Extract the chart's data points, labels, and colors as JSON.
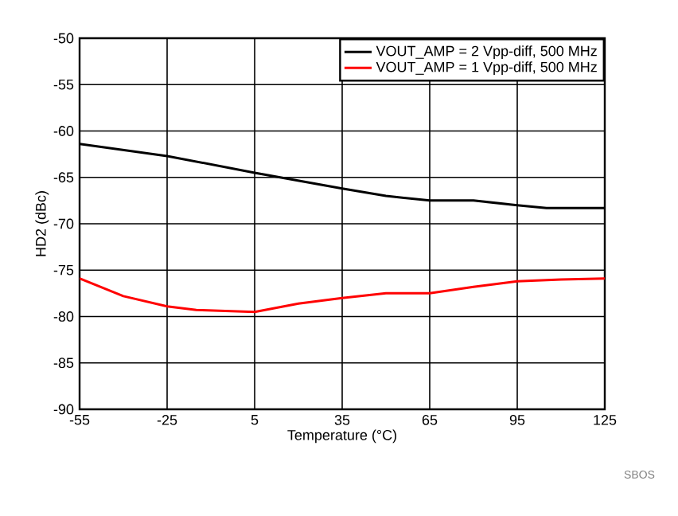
{
  "chart_data": {
    "type": "line",
    "xlabel": "Temperature (°C)",
    "ylabel": "HD2 (dBc)",
    "xlim": [
      -55,
      125
    ],
    "xticks": [
      -55,
      -25,
      5,
      35,
      65,
      95,
      125
    ],
    "ylim": [
      -90,
      -50
    ],
    "yticks": [
      -90,
      -85,
      -80,
      -75,
      -70,
      -65,
      -60,
      -55,
      -50
    ],
    "grid": true,
    "legend": "top right",
    "line_style": "solid",
    "marker": "none",
    "series": [
      {
        "name": "VOUT_AMP = 2 Vpp-diff, 500 MHz",
        "color": "#000000",
        "x": [
          -55,
          -25,
          5,
          35,
          50,
          65,
          80,
          95,
          105,
          125
        ],
        "values": [
          -61.4,
          -62.7,
          -64.5,
          -66.2,
          -67.0,
          -67.5,
          -67.5,
          -68.0,
          -68.3,
          -68.3
        ]
      },
      {
        "name": "VOUT_AMP = 1 Vpp-diff, 500 MHz",
        "color": "#ff0000",
        "x": [
          -55,
          -40,
          -25,
          -15,
          5,
          20,
          35,
          50,
          65,
          80,
          95,
          110,
          125
        ],
        "values": [
          -75.9,
          -77.8,
          -78.9,
          -79.3,
          -79.5,
          -78.6,
          -78.0,
          -77.5,
          -77.5,
          -76.8,
          -76.2,
          -76.0,
          -75.9
        ]
      }
    ],
    "annotations": [
      "SBOS"
    ]
  }
}
